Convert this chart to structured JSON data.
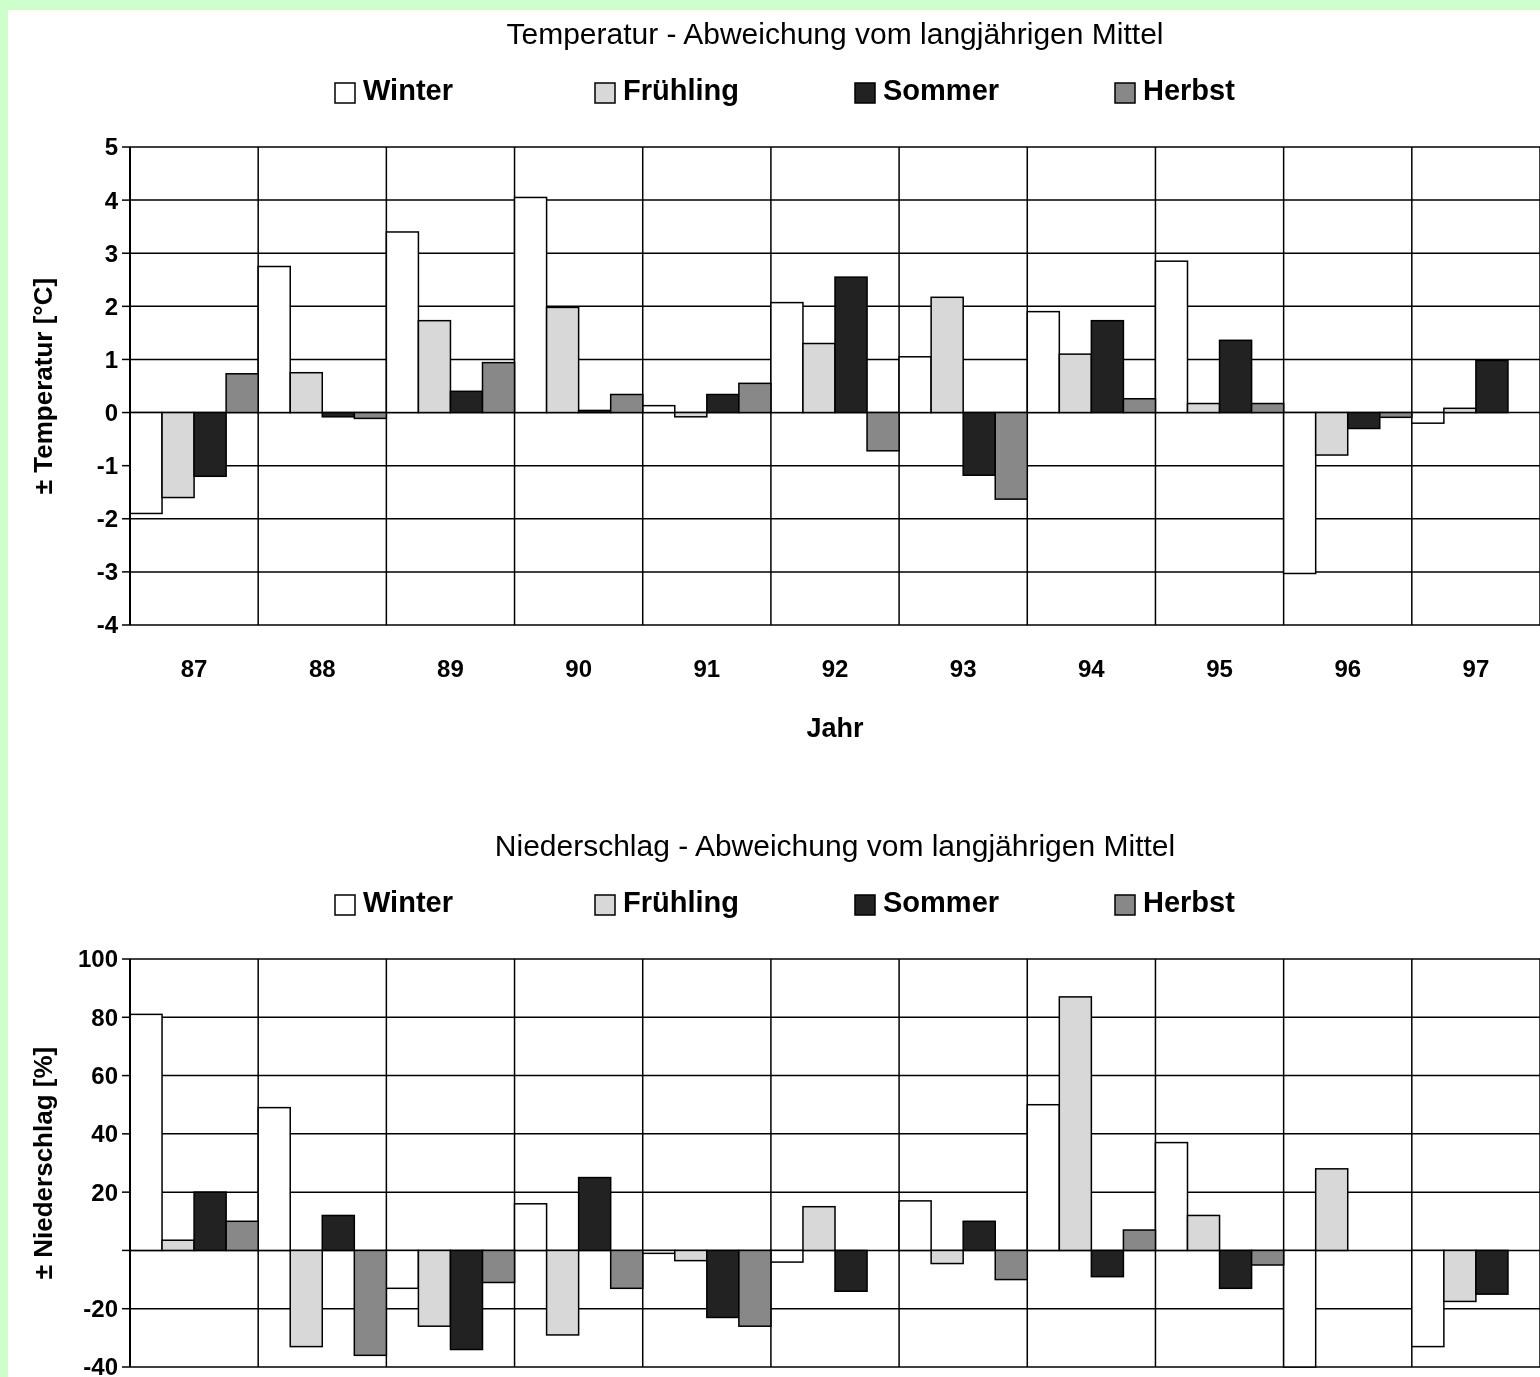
{
  "chart_data": [
    {
      "type": "bar",
      "title": "Temperatur - Abweichung vom langjährigen Mittel",
      "xlabel": "Jahr",
      "ylabel": "± Temperatur  [°C]",
      "categories": [
        "87",
        "88",
        "89",
        "90",
        "91",
        "92",
        "93",
        "94",
        "95",
        "96",
        "97"
      ],
      "series": [
        {
          "name": "Winter",
          "color": "#ffffff",
          "values": [
            -1.9,
            2.75,
            3.4,
            4.05,
            0.13,
            2.07,
            1.05,
            1.9,
            2.85,
            -3.03,
            -0.2
          ]
        },
        {
          "name": "Frühling",
          "color": "#d8d8d8",
          "values": [
            -1.6,
            0.75,
            1.73,
            1.98,
            -0.08,
            1.3,
            2.17,
            1.1,
            0.17,
            -0.8,
            0.08
          ]
        },
        {
          "name": "Sommer",
          "color": "#222222",
          "values": [
            -1.2,
            -0.08,
            0.4,
            0.04,
            0.34,
            2.55,
            -1.18,
            1.73,
            1.36,
            -0.3,
            0.98
          ]
        },
        {
          "name": "Herbst",
          "color": "#888888",
          "values": [
            0.73,
            -0.11,
            0.94,
            0.34,
            0.55,
            -0.72,
            -1.63,
            0.26,
            0.17,
            -0.09,
            null
          ]
        }
      ],
      "ylim": [
        -4,
        5
      ],
      "yticks": [
        -4,
        -3,
        -2,
        -1,
        0,
        1,
        2,
        3,
        4,
        5
      ],
      "grid": true,
      "legend": "top"
    },
    {
      "type": "bar",
      "title": "Niederschlag - Abweichung vom langjährigen Mittel",
      "ylabel": "± Niederschlag  [%]",
      "categories": [
        null,
        null,
        null,
        null,
        null,
        null,
        null,
        null,
        null,
        null,
        null
      ],
      "series": [
        {
          "name": "Winter",
          "color": "#ffffff",
          "values": [
            81,
            49,
            -13,
            16,
            -1,
            -4,
            17,
            50,
            37,
            -40,
            -33
          ]
        },
        {
          "name": "Frühling",
          "color": "#d8d8d8",
          "values": [
            3.5,
            -33,
            -26,
            -29,
            -3.5,
            15,
            -4.5,
            87,
            12,
            28,
            -17.5
          ]
        },
        {
          "name": "Sommer",
          "color": "#222222",
          "values": [
            20,
            12,
            -34,
            25,
            -23,
            -14,
            10,
            -9,
            -13,
            0,
            -15
          ]
        },
        {
          "name": "Herbst",
          "color": "#888888",
          "values": [
            10,
            -36,
            -11,
            -13,
            -26,
            0,
            -10,
            7,
            -5,
            0,
            null
          ]
        }
      ],
      "ylim": [
        -40,
        100
      ],
      "yticks": [
        -40,
        -20,
        {
          "value": 0,
          "label": null
        },
        20,
        40,
        60,
        80,
        100
      ],
      "grid": true,
      "legend": "top"
    }
  ]
}
